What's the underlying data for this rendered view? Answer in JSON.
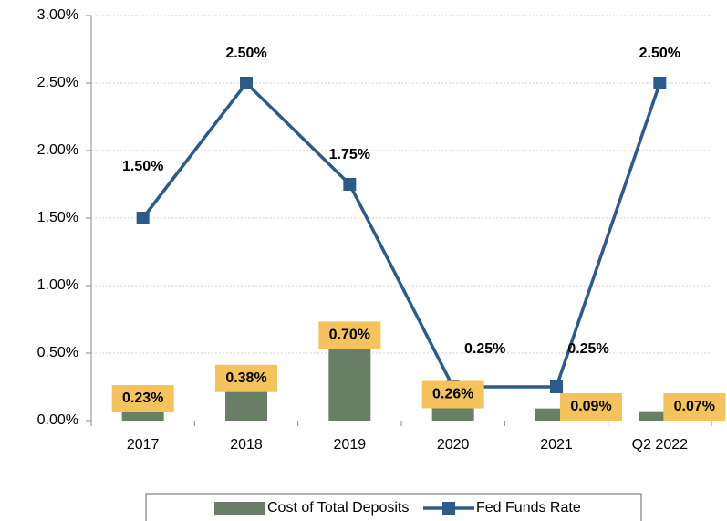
{
  "chart_data": {
    "type": "bar-line",
    "categories": [
      "2017",
      "2018",
      "2019",
      "2020",
      "2021",
      "Q2 2022"
    ],
    "series": [
      {
        "name": "Cost of Total Deposits",
        "type": "bar",
        "color": "#687f66",
        "values": [
          0.23,
          0.38,
          0.7,
          0.26,
          0.09,
          0.07
        ],
        "value_labels": [
          "0.23%",
          "0.38%",
          "0.70%",
          "0.26%",
          "0.09%",
          "0.07%"
        ]
      },
      {
        "name": "Fed Funds Rate",
        "type": "line",
        "color": "#2b5a8c",
        "values": [
          1.5,
          2.5,
          1.75,
          0.25,
          0.25,
          2.5
        ],
        "value_labels": [
          "1.50%",
          "2.50%",
          "1.75%",
          "0.25%",
          "0.25%",
          "2.50%"
        ]
      }
    ],
    "ylim": [
      0,
      3
    ],
    "yticks": [
      {
        "value": 0,
        "label": "0.00%"
      },
      {
        "value": 0.5,
        "label": "0.50%"
      },
      {
        "value": 1,
        "label": "1.00%"
      },
      {
        "value": 1.5,
        "label": "1.50%"
      },
      {
        "value": 2,
        "label": "2.00%"
      },
      {
        "value": 2.5,
        "label": "2.50%"
      },
      {
        "value": 3,
        "label": "3.00%"
      }
    ],
    "grid": true,
    "legend": "bottom"
  }
}
